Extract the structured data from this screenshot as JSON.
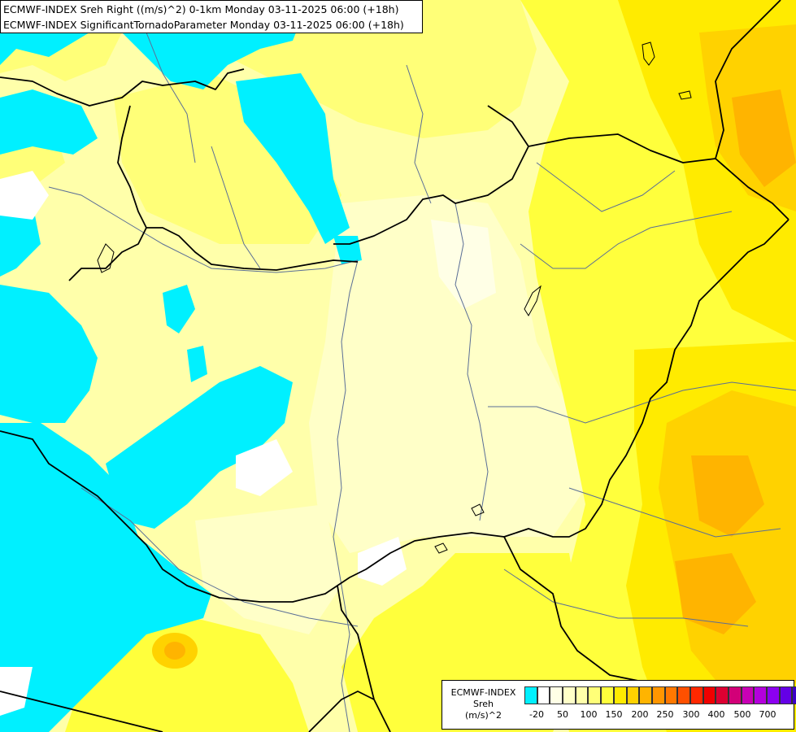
{
  "title_lines": [
    "ECMWF-INDEX Sreh Right ((m/s)^2) 0-1km Monday 03-11-2025 06:00 (+18h)",
    "ECMWF-INDEX SignificantTornadoParameter Monday 03-11-2025 06:00 (+18h)"
  ],
  "legend": {
    "label_lines": [
      "ECMWF-INDEX",
      "Sreh",
      "(m/s)^2"
    ],
    "swatch_colors": [
      "#00f0ff",
      "#ffffff",
      "#ffffe6",
      "#ffffc8",
      "#ffffaa",
      "#ffff78",
      "#ffff3c",
      "#ffeb00",
      "#ffd200",
      "#ffb400",
      "#ff9600",
      "#ff7800",
      "#ff5000",
      "#ff2800",
      "#f00000",
      "#dc0032",
      "#d20078",
      "#c800b4",
      "#b400dc",
      "#8c00f0",
      "#6400e6",
      "#3c00c8",
      "#1e00a0",
      "#000078"
    ],
    "tick_labels": [
      "-20",
      "50",
      "100",
      "150",
      "200",
      "250",
      "300",
      "400",
      "500",
      "700"
    ]
  },
  "field_colors": {
    "cyan": "#00f0ff",
    "white": "#ffffff",
    "pale": "#ffffc8",
    "light_yellow": "#ffffaa",
    "yellow": "#ffff78",
    "bright_yellow": "#ffff3c",
    "gold": "#ffeb00",
    "amber": "#ffd200",
    "orange": "#ffb400"
  },
  "line_colors": {
    "border": "#000000",
    "river": "#5a6e96"
  }
}
